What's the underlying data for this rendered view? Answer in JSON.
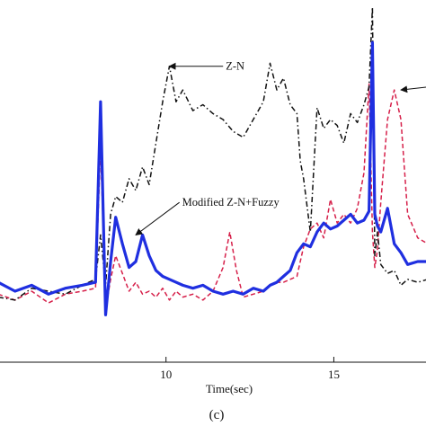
{
  "chart_data": {
    "type": "line",
    "title": "",
    "panel_label": "(c)",
    "xlabel": "Time(sec)",
    "ylabel": "",
    "xlim": [
      5,
      17.8
    ],
    "ylim": [
      -1.8,
      10.5
    ],
    "xticks": [
      10,
      15
    ],
    "grid": false,
    "legend": "none",
    "annotations": [
      {
        "text": "Z-N",
        "x": 11.7,
        "y": 8.2,
        "arrow_to": [
          10.1,
          8.2
        ]
      },
      {
        "text": "Modified  Z-N+Fuzzy",
        "x": 10.4,
        "y": 3.6,
        "arrow_to": [
          9.1,
          2.5
        ]
      },
      {
        "text": "",
        "x": 17.8,
        "y": 7.5,
        "arrow_to": [
          17.0,
          7.4
        ]
      }
    ],
    "series": [
      {
        "name": "",
        "color": "#111111",
        "style": "dashdot",
        "x": [
          5.0,
          5.5,
          6.0,
          6.5,
          7.0,
          7.5,
          7.9,
          8.05,
          8.2,
          8.35,
          8.5,
          8.7,
          8.9,
          9.1,
          9.3,
          9.5,
          9.7,
          9.9,
          10.1,
          10.3,
          10.5,
          10.8,
          11.1,
          11.4,
          11.7,
          12.0,
          12.3,
          12.6,
          12.9,
          13.1,
          13.3,
          13.5,
          13.7,
          13.9,
          14.0,
          14.1,
          14.3,
          14.5,
          14.7,
          14.9,
          15.1,
          15.3,
          15.5,
          15.7,
          15.9,
          16.05,
          16.15,
          16.22,
          16.3,
          16.4,
          16.6,
          16.8,
          17.0,
          17.2,
          17.5,
          17.8
        ],
        "y": [
          0.4,
          0.3,
          0.7,
          0.6,
          0.5,
          0.8,
          1.0,
          2.5,
          0.8,
          3.2,
          3.8,
          3.6,
          4.4,
          4.0,
          4.8,
          4.2,
          5.6,
          7.0,
          8.2,
          7.0,
          7.4,
          6.7,
          6.9,
          6.6,
          6.4,
          6.0,
          5.8,
          6.4,
          7.0,
          8.3,
          7.4,
          7.8,
          6.9,
          6.6,
          5.0,
          4.4,
          2.6,
          6.8,
          6.1,
          6.4,
          6.2,
          5.6,
          6.6,
          6.3,
          6.9,
          7.5,
          10.2,
          1.8,
          2.6,
          1.5,
          1.2,
          1.3,
          0.8,
          1.0,
          0.9,
          1.0
        ]
      },
      {
        "name": "Modified  Z-N+Fuzzy",
        "color": "#1f2fe0",
        "style": "solid",
        "x": [
          5.0,
          5.5,
          6.0,
          6.5,
          7.0,
          7.5,
          7.9,
          8.05,
          8.2,
          8.35,
          8.5,
          8.7,
          8.9,
          9.1,
          9.3,
          9.5,
          9.7,
          9.9,
          10.1,
          10.3,
          10.5,
          10.8,
          11.1,
          11.4,
          11.7,
          12.0,
          12.3,
          12.6,
          12.9,
          13.1,
          13.3,
          13.5,
          13.7,
          13.9,
          14.1,
          14.3,
          14.5,
          14.7,
          14.9,
          15.1,
          15.3,
          15.5,
          15.7,
          15.9,
          16.05,
          16.15,
          16.22,
          16.3,
          16.4,
          16.6,
          16.8,
          17.0,
          17.2,
          17.5,
          17.8
        ],
        "y": [
          0.9,
          0.6,
          0.8,
          0.5,
          0.7,
          0.8,
          0.9,
          7.0,
          -0.2,
          1.6,
          3.1,
          2.2,
          1.4,
          1.6,
          2.5,
          1.8,
          1.3,
          1.1,
          1.0,
          0.9,
          0.8,
          0.7,
          0.8,
          0.6,
          0.5,
          0.6,
          0.5,
          0.7,
          0.6,
          0.8,
          0.9,
          1.1,
          1.3,
          1.9,
          2.2,
          2.1,
          2.6,
          2.9,
          2.7,
          2.8,
          3.0,
          3.2,
          2.9,
          3.0,
          3.3,
          9.0,
          3.2,
          2.8,
          2.6,
          3.4,
          2.2,
          1.9,
          1.5,
          1.6,
          1.6
        ]
      },
      {
        "name": "",
        "color": "#d6204a",
        "style": "dashed",
        "x": [
          5.0,
          5.5,
          6.0,
          6.5,
          7.0,
          7.5,
          7.9,
          8.05,
          8.2,
          8.35,
          8.5,
          8.7,
          8.9,
          9.1,
          9.3,
          9.5,
          9.7,
          9.9,
          10.1,
          10.3,
          10.5,
          10.8,
          11.1,
          11.4,
          11.7,
          11.9,
          12.1,
          12.3,
          12.6,
          12.9,
          13.1,
          13.3,
          13.5,
          13.7,
          13.9,
          14.1,
          14.3,
          14.5,
          14.7,
          14.9,
          15.1,
          15.3,
          15.5,
          15.7,
          15.9,
          16.05,
          16.15,
          16.22,
          16.3,
          16.4,
          16.6,
          16.8,
          17.0,
          17.2,
          17.5,
          17.8
        ],
        "y": [
          0.5,
          0.3,
          0.6,
          0.2,
          0.5,
          0.6,
          0.7,
          5.5,
          0.0,
          1.0,
          1.8,
          1.2,
          0.6,
          0.9,
          0.5,
          0.6,
          0.4,
          0.7,
          0.3,
          0.6,
          0.4,
          0.5,
          0.3,
          0.6,
          1.4,
          2.6,
          1.3,
          0.4,
          0.5,
          0.6,
          0.8,
          0.9,
          0.9,
          1.0,
          1.1,
          2.1,
          2.7,
          2.9,
          2.4,
          3.7,
          2.9,
          3.2,
          2.9,
          3.4,
          4.6,
          7.6,
          2.6,
          1.4,
          2.0,
          3.6,
          6.4,
          7.4,
          6.4,
          3.2,
          2.4,
          2.2
        ]
      }
    ]
  }
}
